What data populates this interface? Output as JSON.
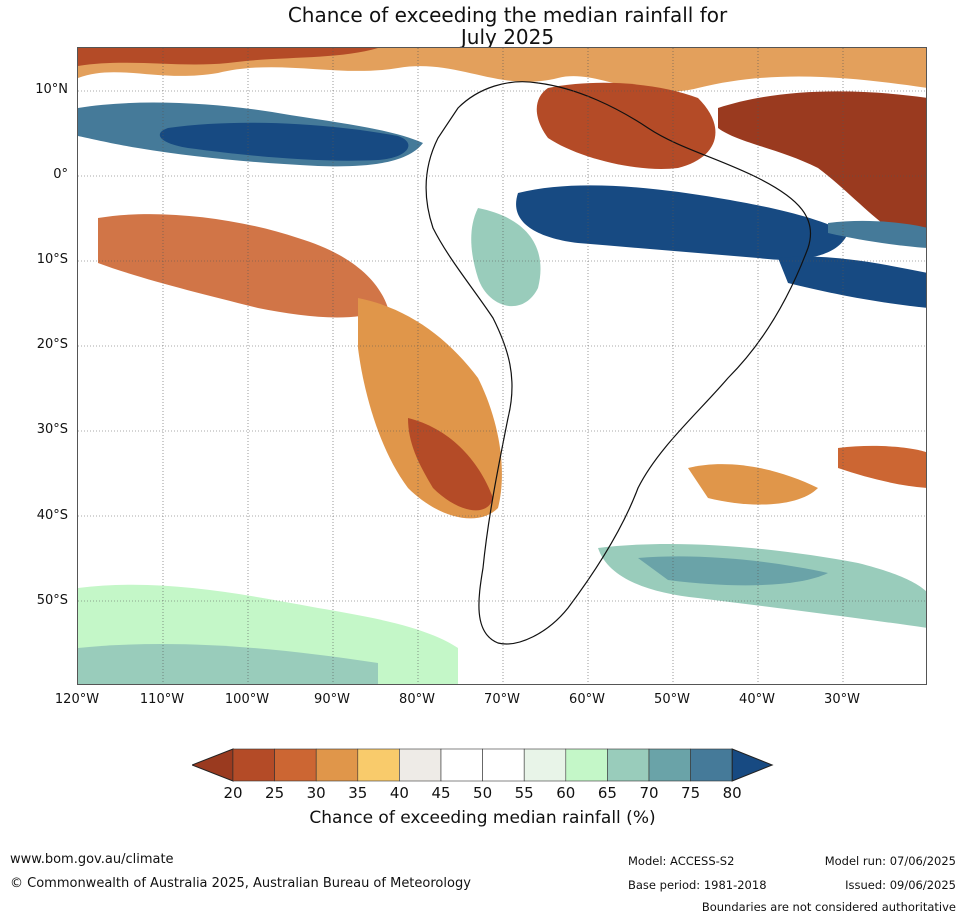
{
  "title_line1": "Chance of exceeding the median rainfall for",
  "title_line2": "July 2025",
  "latitude_labels": [
    "10°N",
    "0°",
    "10°S",
    "20°S",
    "30°S",
    "40°S",
    "50°S"
  ],
  "longitude_labels": [
    "120°W",
    "110°W",
    "100°W",
    "90°W",
    "80°W",
    "70°W",
    "60°W",
    "50°W",
    "40°W",
    "30°W"
  ],
  "colorbar": {
    "title": "Chance of exceeding median rainfall (%)",
    "ticks": [
      "20",
      "25",
      "30",
      "35",
      "40",
      "45",
      "50",
      "55",
      "60",
      "65",
      "70",
      "75",
      "80"
    ],
    "colors": [
      "#9a3a1f",
      "#b44b27",
      "#cc6633",
      "#e0964a",
      "#f9cb6b",
      "#eeebe7",
      "#ffffff",
      "#ffffff",
      "#e8f4e8",
      "#c4f7c8",
      "#99ccbb",
      "#6aa3a8",
      "#457a99",
      "#174a82"
    ],
    "under_color": "#9a3a1f",
    "over_color": "#174a82"
  },
  "footer": {
    "website": "www.bom.gov.au/climate",
    "copyright": "© Commonwealth of Australia 2025, Australian Bureau of Meteorology",
    "model": "Model: ACCESS-S2",
    "base_period": "Base period: 1981-2018",
    "model_run": "Model run: 07/06/2025",
    "issued": "Issued: 09/06/2025",
    "disclaimer": "Boundaries are not considered authoritative"
  }
}
